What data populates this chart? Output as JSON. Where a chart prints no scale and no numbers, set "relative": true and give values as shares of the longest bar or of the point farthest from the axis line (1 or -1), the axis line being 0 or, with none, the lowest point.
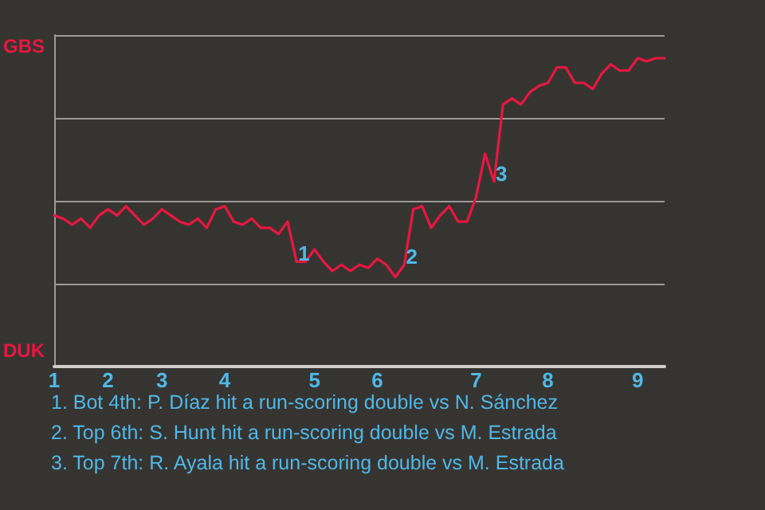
{
  "chart_data": {
    "type": "line",
    "relative": true,
    "categories": [
      "1",
      null,
      null,
      null,
      null,
      null,
      "2",
      null,
      null,
      null,
      null,
      null,
      "3",
      null,
      null,
      null,
      null,
      null,
      null,
      "4",
      null,
      null,
      null,
      null,
      null,
      null,
      null,
      null,
      null,
      "5",
      null,
      null,
      null,
      null,
      null,
      null,
      "6",
      null,
      null,
      null,
      null,
      null,
      null,
      null,
      null,
      null,
      null,
      "7",
      null,
      null,
      null,
      null,
      null,
      null,
      null,
      "8",
      null,
      null,
      null,
      null,
      null,
      null,
      null,
      null,
      null,
      "9",
      null,
      null,
      null
    ],
    "series": [
      {
        "color": "#e8173f",
        "values": [
          0.49,
          0.48,
          0.46,
          0.48,
          0.45,
          0.49,
          0.51,
          0.49,
          0.52,
          0.49,
          0.46,
          0.48,
          0.51,
          0.49,
          0.47,
          0.46,
          0.48,
          0.45,
          0.51,
          0.52,
          0.47,
          0.46,
          0.48,
          0.45,
          0.45,
          0.43,
          0.47,
          0.34,
          0.34,
          0.38,
          0.34,
          0.31,
          0.33,
          0.31,
          0.33,
          0.32,
          0.35,
          0.33,
          0.29,
          0.33,
          0.51,
          0.52,
          0.45,
          0.49,
          0.52,
          0.47,
          0.47,
          0.55,
          0.69,
          0.6,
          0.85,
          0.87,
          0.85,
          0.89,
          0.91,
          0.92,
          0.97,
          0.97,
          0.92,
          0.92,
          0.9,
          0.95,
          0.98,
          0.96,
          0.96,
          1,
          0.99,
          1,
          1
        ],
        "name": null
      }
    ],
    "grid": "y",
    "marker": "none",
    "line_style": "solid",
    "annotations": [
      {
        "text": "1",
        "y": 0.34
      },
      {
        "text": "2",
        "y": 0.33
      },
      {
        "text": "3",
        "y": 0.6
      },
      "GBS",
      "DUK",
      "1. Bot 4th: P. Díaz hit a run-scoring double vs N. Sánchez",
      "2. Top 6th: S. Hunt hit a run-scoring double vs M. Estrada",
      "3. Top 7th: R. Ayala hit a run-scoring double vs M. Estrada"
    ]
  }
}
